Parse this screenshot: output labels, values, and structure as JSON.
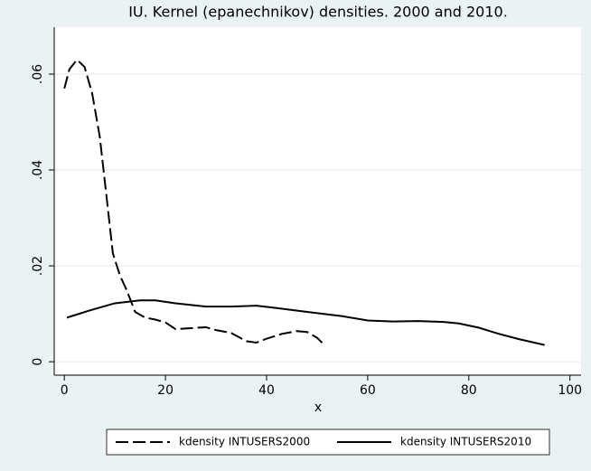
{
  "chart_data": {
    "type": "line",
    "title": "IU. Kernel (epanechnikov) densities. 2000 and 2010.",
    "xlabel": "x",
    "xlim": [
      -2,
      102.2
    ],
    "ylim": [
      -0.0028,
      0.0698
    ],
    "xticks": [
      0,
      20,
      40,
      60,
      80,
      100
    ],
    "yticks": [
      0,
      {
        "value": 0.02,
        "label": ".02"
      },
      {
        "value": 0.04,
        "label": ".04"
      },
      {
        "value": 0.06,
        "label": ".06"
      }
    ],
    "grid": true,
    "legend": "bottom",
    "series": [
      {
        "name": "kdensity INTUSERS2000",
        "color": "#000000",
        "linestyle": "dashed",
        "x": [
          0,
          1,
          2.5,
          4,
          5.5,
          7,
          8.5,
          9.6,
          11,
          12.3,
          14,
          16,
          18,
          20,
          22,
          25,
          28,
          30,
          33,
          36,
          38,
          40,
          43,
          46,
          48,
          50,
          51.5
        ],
        "values": [
          0.057,
          0.061,
          0.063,
          0.0615,
          0.056,
          0.047,
          0.033,
          0.0226,
          0.018,
          0.015,
          0.0104,
          0.0092,
          0.0088,
          0.0082,
          0.0068,
          0.007,
          0.0072,
          0.0066,
          0.006,
          0.0043,
          0.004,
          0.0048,
          0.0058,
          0.0064,
          0.0062,
          0.005,
          0.0034
        ]
      },
      {
        "name": "kdensity INTUSERS2010",
        "color": "#000000",
        "linestyle": "solid",
        "x": [
          0.5,
          5,
          10,
          15,
          18,
          22,
          28,
          33,
          38,
          42,
          48,
          55,
          60,
          65,
          70,
          75,
          78,
          82,
          86,
          90,
          95
        ],
        "values": [
          0.0092,
          0.0107,
          0.0122,
          0.0128,
          0.0128,
          0.0122,
          0.0115,
          0.0115,
          0.0117,
          0.0112,
          0.0104,
          0.0095,
          0.0086,
          0.0084,
          0.0085,
          0.0083,
          0.008,
          0.0071,
          0.0058,
          0.0047,
          0.0035
        ]
      }
    ]
  }
}
